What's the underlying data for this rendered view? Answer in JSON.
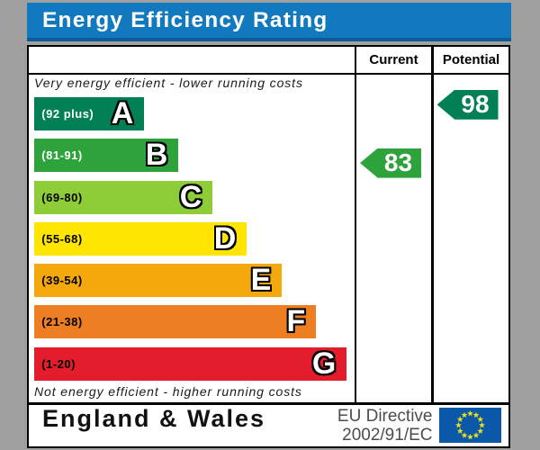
{
  "title": "Energy Efficiency Rating",
  "header": {
    "current_label": "Current",
    "potential_label": "Potential"
  },
  "notes": {
    "top": "Very energy efficient - lower running costs",
    "bottom": "Not energy efficient - higher running costs"
  },
  "footer": {
    "region": "England & Wales",
    "directive_line1": "EU Directive",
    "directive_line2": "2002/91/EC",
    "flag_colors": {
      "field": "#0b57a8",
      "stars": "#e8e021"
    }
  },
  "colors": {
    "page_background": "#a0a0a0",
    "header_bar": "#1279be",
    "header_bar_shadow": "#0d5c95",
    "table_background": "#ffffff",
    "border": "#000000"
  },
  "chart_data": {
    "type": "bar",
    "title": "Energy Efficiency Rating",
    "categories": [
      "A",
      "B",
      "C",
      "D",
      "E",
      "F",
      "G"
    ],
    "bands": [
      {
        "letter": "A",
        "label": "(92 plus)",
        "min": 92,
        "max": 100,
        "color": "#008054",
        "label_color": "#ffffff"
      },
      {
        "letter": "B",
        "label": "(81-91)",
        "min": 81,
        "max": 91,
        "color": "#2ea33c",
        "label_color": "#ffffff"
      },
      {
        "letter": "C",
        "label": "(69-80)",
        "min": 69,
        "max": 80,
        "color": "#8ecc38",
        "label_color": "#000000"
      },
      {
        "letter": "D",
        "label": "(55-68)",
        "min": 55,
        "max": 68,
        "color": "#ffe500",
        "label_color": "#000000"
      },
      {
        "letter": "E",
        "label": "(39-54)",
        "min": 39,
        "max": 54,
        "color": "#f4a80b",
        "label_color": "#000000"
      },
      {
        "letter": "F",
        "label": "(21-38)",
        "min": 21,
        "max": 38,
        "color": "#ee7e22",
        "label_color": "#000000"
      },
      {
        "letter": "G",
        "label": "(1-20)",
        "min": 1,
        "max": 20,
        "color": "#e31d2b",
        "label_color": "#000000"
      }
    ],
    "markers": {
      "current": 83,
      "potential": 98
    }
  }
}
